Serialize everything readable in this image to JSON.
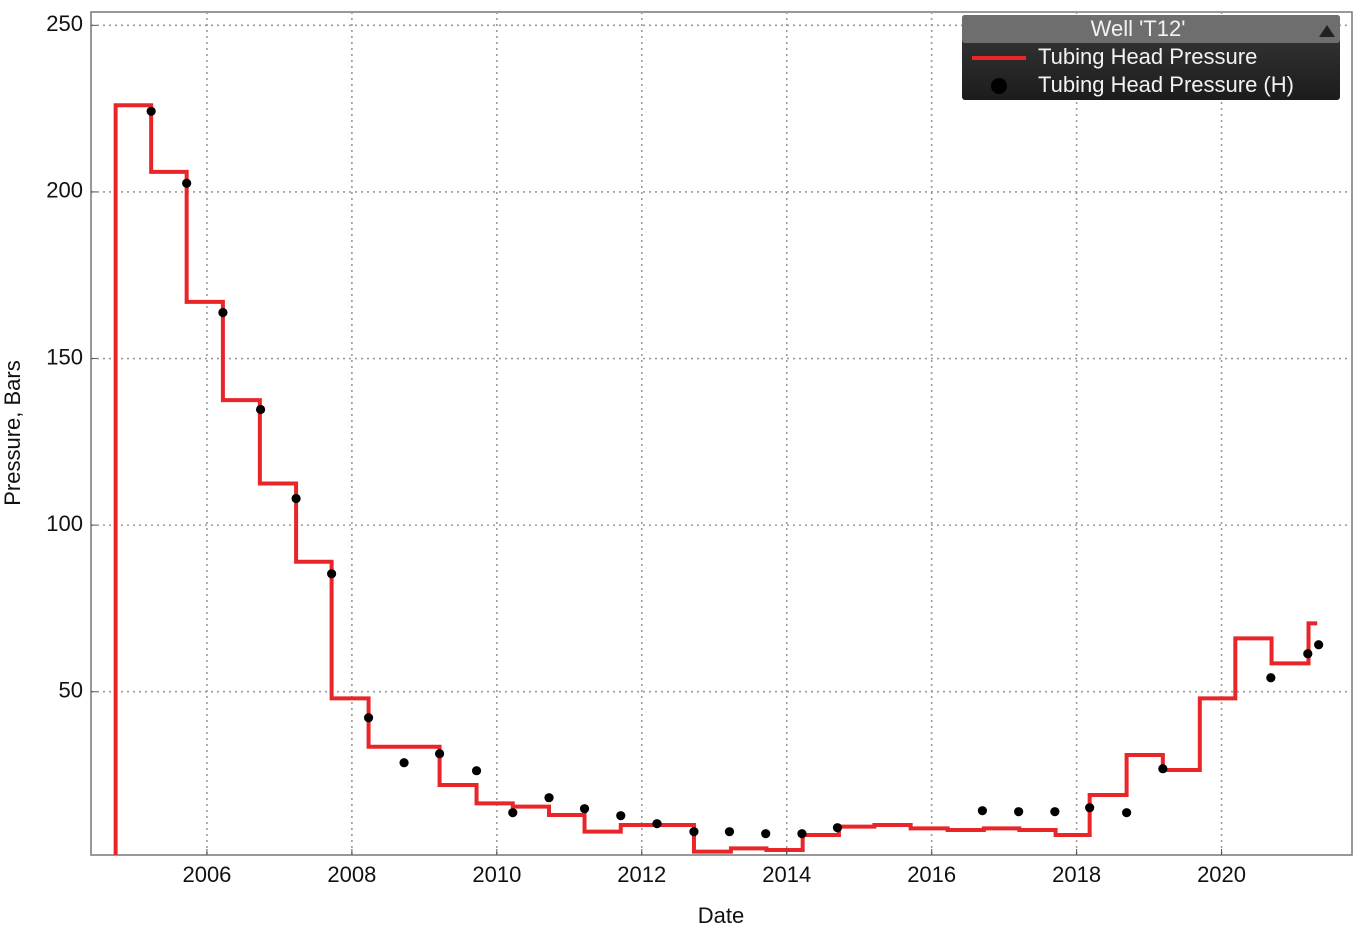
{
  "chart_data": {
    "type": "line",
    "xlabel": "Date",
    "ylabel": "Pressure, Bars",
    "xlim": [
      2004.4,
      2021.8
    ],
    "xticks": [
      2006,
      2008,
      2010,
      2012,
      2014,
      2016,
      2018,
      2020
    ],
    "ylim": [
      1,
      254
    ],
    "yticks": [
      50,
      100,
      150,
      200,
      250
    ],
    "grid": true,
    "legend": {
      "title": "Well 'T12'",
      "corner": "upper right"
    },
    "series": [
      {
        "name": "Tubing Head Pressure",
        "color": "#e8262a",
        "style": "step",
        "x": [
          2004.74,
          2004.74,
          2005.23,
          2005.72,
          2006.22,
          2006.73,
          2007.23,
          2007.72,
          2008.23,
          2009.21,
          2009.72,
          2010.22,
          2010.72,
          2011.21,
          2011.71,
          2012.72,
          2013.23,
          2013.72,
          2014.22,
          2014.72,
          2015.21,
          2015.71,
          2016.22,
          2016.72,
          2017.21,
          2017.71,
          2018.18,
          2018.69,
          2019.19,
          2019.7,
          2020.19,
          2020.69,
          2021.2,
          2021.32
        ],
        "values": [
          0,
          226,
          206,
          167,
          137.5,
          112.5,
          89,
          48,
          33.5,
          22,
          16.5,
          15.5,
          13,
          8,
          10,
          2,
          3,
          2.5,
          7,
          9.5,
          10,
          9,
          8.5,
          9,
          8.5,
          7,
          19,
          31,
          26.5,
          48,
          66,
          58.5,
          70.5,
          70.5
        ]
      },
      {
        "name": "Tubing Head Pressure (H)",
        "color": "#000000",
        "style": "points",
        "x": [
          2005.23,
          2005.72,
          2006.22,
          2006.74,
          2007.23,
          2007.72,
          2008.23,
          2008.72,
          2009.21,
          2009.72,
          2010.22,
          2010.72,
          2011.21,
          2011.71,
          2012.21,
          2012.72,
          2013.21,
          2013.71,
          2014.21,
          2014.7,
          2016.7,
          2017.2,
          2017.7,
          2018.18,
          2018.69,
          2019.19,
          2020.68,
          2021.19,
          2021.34
        ],
        "values": [
          224.2,
          202.6,
          163.8,
          134.7,
          108.0,
          85.4,
          42.2,
          28.7,
          31.4,
          26.3,
          13.7,
          18.2,
          14.9,
          12.8,
          10.4,
          8.0,
          8.0,
          7.4,
          7.4,
          9.2,
          14.3,
          14.0,
          14.0,
          15.2,
          13.7,
          26.9,
          54.2,
          61.4,
          64.1
        ]
      }
    ]
  }
}
